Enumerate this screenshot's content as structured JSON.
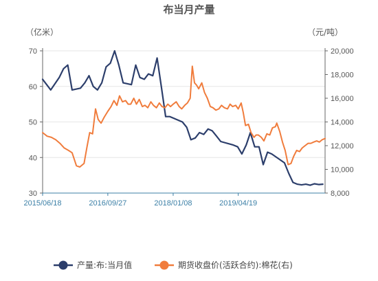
{
  "chart_data": {
    "type": "line",
    "title": "布当月产量",
    "left_unit": "（亿米）",
    "right_unit": "（元/吨）",
    "x_range": [
      "2015/06/18",
      "2020/12/31"
    ],
    "x_ticks": [
      "2015/06/18",
      "2016/09/27",
      "2018/01/08",
      "2019/04/19"
    ],
    "y_left": {
      "min": 30,
      "max": 70,
      "ticks": [
        30,
        40,
        50,
        60,
        70
      ]
    },
    "y_right": {
      "min": 8000,
      "max": 20000,
      "ticks": [
        8000,
        10000,
        12000,
        14000,
        16000,
        18000,
        20000
      ]
    },
    "grid": true,
    "legend_position": "bottom",
    "series": [
      {
        "name": "产量:布:当月值",
        "axis": "left",
        "color": "#2c3e6b",
        "x": [
          "2015/06/18",
          "2015/08/15",
          "2015/10/15",
          "2015/11/15",
          "2015/12/15",
          "2016/01/15",
          "2016/03/15",
          "2016/04/15",
          "2016/05/15",
          "2016/06/15",
          "2016/07/15",
          "2016/08/15",
          "2016/09/15",
          "2016/10/15",
          "2016/11/15",
          "2016/12/15",
          "2017/01/15",
          "2017/03/15",
          "2017/04/15",
          "2017/05/15",
          "2017/06/15",
          "2017/07/15",
          "2017/08/15",
          "2017/09/15",
          "2017/10/15",
          "2017/11/15",
          "2017/12/15",
          "2018/03/15",
          "2018/04/15",
          "2018/05/15",
          "2018/06/15",
          "2018/07/15",
          "2018/08/15",
          "2018/09/15",
          "2018/10/15",
          "2018/11/15",
          "2018/12/15",
          "2019/03/15",
          "2019/04/15",
          "2019/05/15",
          "2019/06/15",
          "2019/07/15",
          "2019/08/15",
          "2019/09/15",
          "2019/10/15",
          "2019/11/15",
          "2019/12/15",
          "2020/03/15",
          "2020/04/15",
          "2020/05/15",
          "2020/06/15",
          "2020/07/15",
          "2020/08/15",
          "2020/09/15",
          "2020/10/15",
          "2020/11/15",
          "2020/12/15"
        ],
        "values": [
          62,
          59,
          62.5,
          65,
          66,
          59,
          59.5,
          61,
          63,
          60,
          59,
          61,
          65.5,
          66.5,
          70,
          66,
          61,
          60.5,
          66,
          62.5,
          62,
          63.5,
          63,
          68,
          60,
          51.5,
          51.5,
          50,
          48.5,
          45,
          45.5,
          47,
          46.5,
          48,
          47.5,
          46,
          44.5,
          43.5,
          43,
          41,
          43.5,
          47,
          43,
          43,
          38,
          41.5,
          41,
          38.5,
          35.5,
          33,
          32.5,
          32.3,
          32.5,
          32.2,
          32.6,
          32.4,
          32.5
        ]
      },
      {
        "name": "期货收盘价(活跃合约):棉花(右)",
        "axis": "right",
        "color": "#f07c3c",
        "x": [
          "2015/06/18",
          "2015/07/20",
          "2015/08/20",
          "2015/09/20",
          "2015/10/20",
          "2015/11/20",
          "2015/12/20",
          "2016/01/15",
          "2016/02/15",
          "2016/03/10",
          "2016/04/10",
          "2016/05/01",
          "2016/05/20",
          "2016/06/10",
          "2016/07/01",
          "2016/07/20",
          "2016/08/10",
          "2016/09/01",
          "2016/09/27",
          "2016/10/20",
          "2016/11/10",
          "2016/12/01",
          "2016/12/20",
          "2017/01/10",
          "2017/02/01",
          "2017/02/20",
          "2017/03/10",
          "2017/04/01",
          "2017/04/20",
          "2017/05/10",
          "2017/06/01",
          "2017/06/20",
          "2017/07/10",
          "2017/08/01",
          "2017/08/20",
          "2017/09/10",
          "2017/10/01",
          "2017/10/20",
          "2017/11/10",
          "2017/12/01",
          "2017/12/20",
          "2018/01/08",
          "2018/01/30",
          "2018/02/20",
          "2018/03/10",
          "2018/04/01",
          "2018/04/20",
          "2018/05/10",
          "2018/05/25",
          "2018/06/10",
          "2018/06/25",
          "2018/07/10",
          "2018/08/01",
          "2018/08/20",
          "2018/09/10",
          "2018/10/01",
          "2018/10/20",
          "2018/11/10",
          "2018/12/01",
          "2018/12/20",
          "2019/01/10",
          "2019/02/01",
          "2019/02/20",
          "2019/03/10",
          "2019/04/01",
          "2019/04/19",
          "2019/05/10",
          "2019/05/25",
          "2019/06/10",
          "2019/07/01",
          "2019/07/20",
          "2019/08/10",
          "2019/08/25",
          "2019/09/10",
          "2019/10/01",
          "2019/10/20",
          "2019/11/10",
          "2019/12/01",
          "2019/12/20",
          "2020/01/10",
          "2020/01/20",
          "2020/02/10",
          "2020/03/01",
          "2020/03/20",
          "2020/04/10",
          "2020/05/01",
          "2020/05/20",
          "2020/06/10",
          "2020/07/01",
          "2020/07/20",
          "2020/08/10",
          "2020/09/01",
          "2020/09/20",
          "2020/10/10",
          "2020/11/01",
          "2020/11/20",
          "2020/12/10",
          "2020/12/31"
        ],
        "values": [
          13100,
          12800,
          12700,
          12500,
          12200,
          11800,
          11600,
          11400,
          10300,
          10200,
          10500,
          11900,
          13100,
          13000,
          15100,
          14200,
          13900,
          14400,
          14900,
          15300,
          15800,
          15400,
          16200,
          15700,
          15800,
          15500,
          15500,
          16000,
          15500,
          15900,
          15300,
          15400,
          15200,
          15700,
          15400,
          15200,
          15600,
          15300,
          15200,
          15500,
          15300,
          15500,
          15700,
          15300,
          15100,
          15400,
          15600,
          16000,
          18700,
          17300,
          17100,
          16800,
          17300,
          16500,
          16000,
          15300,
          15200,
          15000,
          15100,
          15400,
          15200,
          15100,
          15500,
          15300,
          15400,
          15100,
          15600,
          14800,
          13700,
          13800,
          13100,
          12700,
          12900,
          12900,
          12700,
          12400,
          13000,
          12900,
          13500,
          13600,
          13900,
          13200,
          12300,
          11600,
          10400,
          10500,
          11100,
          11600,
          11500,
          11800,
          12000,
          12200,
          12200,
          12300,
          12400,
          12300,
          12500,
          12600
        ]
      }
    ]
  }
}
